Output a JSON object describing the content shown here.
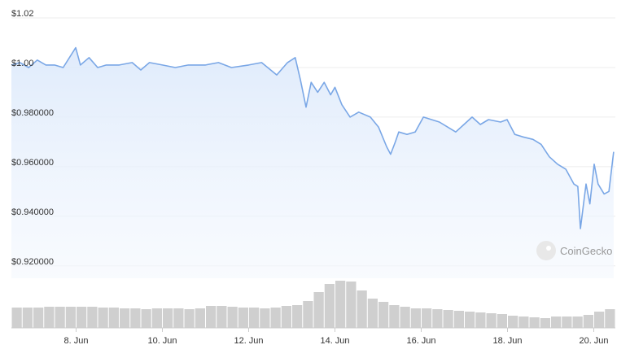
{
  "chart_data": {
    "type": "line",
    "x": [
      6.5,
      6.7,
      6.9,
      7.1,
      7.3,
      7.5,
      7.7,
      7.99,
      8.1,
      8.3,
      8.5,
      8.7,
      9.0,
      9.3,
      9.5,
      9.7,
      10.0,
      10.3,
      10.6,
      11.0,
      11.3,
      11.6,
      12.0,
      12.3,
      12.65,
      12.9,
      13.08,
      13.2,
      13.33,
      13.45,
      13.6,
      13.75,
      13.9,
      14.0,
      14.16,
      14.35,
      14.55,
      14.82,
      15.01,
      15.2,
      15.29,
      15.4,
      15.48,
      15.67,
      15.86,
      16.05,
      16.24,
      16.42,
      16.61,
      16.8,
      16.99,
      17.18,
      17.37,
      17.56,
      17.84,
      17.99,
      18.17,
      18.36,
      18.59,
      18.78,
      18.97,
      19.16,
      19.35,
      19.54,
      19.63,
      19.69,
      19.82,
      19.91,
      20.01,
      20.1,
      20.24,
      20.35,
      20.46
    ],
    "series": [
      {
        "color": "#7aa7e6",
        "values": [
          1.001,
          1.002,
          1.0,
          1.003,
          1.001,
          1.001,
          1.0,
          1.008,
          1.001,
          1.004,
          1.0,
          1.001,
          1.001,
          1.002,
          0.999,
          1.002,
          1.001,
          1.0,
          1.001,
          1.001,
          1.002,
          1.0,
          1.001,
          1.002,
          0.997,
          1.002,
          1.004,
          0.995,
          0.984,
          0.994,
          0.99,
          0.994,
          0.989,
          0.992,
          0.985,
          0.98,
          0.982,
          0.98,
          0.976,
          0.968,
          0.965,
          0.97,
          0.974,
          0.973,
          0.974,
          0.98,
          0.979,
          0.978,
          0.976,
          0.974,
          0.977,
          0.98,
          0.977,
          0.979,
          0.978,
          0.979,
          0.973,
          0.972,
          0.971,
          0.969,
          0.964,
          0.961,
          0.959,
          0.953,
          0.952,
          0.935,
          0.953,
          0.945,
          0.961,
          0.953,
          0.949,
          0.95,
          0.966
        ]
      }
    ],
    "ylim": [
      0.915,
      1.02
    ],
    "yticks": [
      {
        "value": 1.02,
        "label": "$1.02"
      },
      {
        "value": 1.0,
        "label": "$1.00"
      },
      {
        "value": 0.98,
        "label": "$0.980000"
      },
      {
        "value": 0.96,
        "label": "$0.960000"
      },
      {
        "value": 0.94,
        "label": "$0.940000"
      },
      {
        "value": 0.92,
        "label": "$0.920000"
      }
    ],
    "xlim": [
      6.5,
      20.5
    ],
    "xticks": [
      {
        "value": 8,
        "label": "8. Jun"
      },
      {
        "value": 10,
        "label": "10. Jun"
      },
      {
        "value": 12,
        "label": "12. Jun"
      },
      {
        "value": 14,
        "label": "14. Jun"
      },
      {
        "value": 16,
        "label": "16. Jun"
      },
      {
        "value": 18,
        "label": "18. Jun"
      },
      {
        "value": 20,
        "label": "20. Jun"
      }
    ],
    "grid": true,
    "watermark": "CoinGecko",
    "volume": {
      "color": "#cfcfcf",
      "ylim": [
        0,
        70
      ],
      "width": 0.25,
      "x": [
        6.5,
        6.75,
        7,
        7.25,
        7.5,
        7.75,
        8,
        8.25,
        8.5,
        8.75,
        9,
        9.25,
        9.5,
        9.75,
        10,
        10.25,
        10.5,
        10.75,
        11,
        11.25,
        11.5,
        11.75,
        12,
        12.25,
        12.5,
        12.75,
        13,
        13.25,
        13.5,
        13.75,
        14,
        14.25,
        14.5,
        14.75,
        15,
        15.25,
        15.5,
        15.75,
        16,
        16.25,
        16.5,
        16.75,
        17,
        17.25,
        17.5,
        17.75,
        18,
        18.25,
        18.5,
        18.75,
        19,
        19.25,
        19.5,
        19.75,
        20,
        20.25
      ],
      "values": [
        25,
        25,
        25,
        26,
        26,
        26,
        26,
        26,
        25,
        25,
        24,
        24,
        23,
        24,
        24,
        24,
        23,
        24,
        27,
        27,
        26,
        25,
        25,
        24,
        25,
        27,
        28,
        33,
        44,
        54,
        58,
        57,
        46,
        36,
        32,
        28,
        26,
        24,
        24,
        23,
        22,
        21,
        20,
        19,
        18,
        17,
        15,
        14,
        13,
        12,
        14,
        14,
        14,
        16,
        20,
        23
      ]
    }
  }
}
